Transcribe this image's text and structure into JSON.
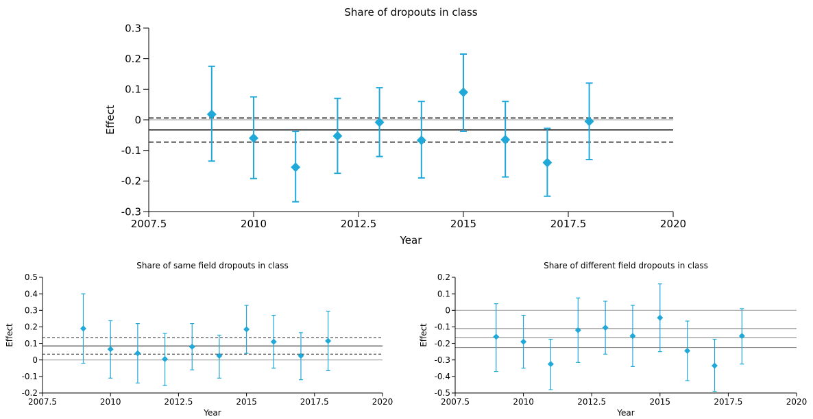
{
  "chart_data": [
    {
      "type": "scatter",
      "title": "Share of dropouts in class",
      "xlabel": "Year",
      "ylabel": "Effect",
      "xlim": [
        2007.5,
        2020
      ],
      "ylim": [
        -0.3,
        0.3
      ],
      "xticks": [
        "2007.5",
        "2010",
        "2012.5",
        "2015",
        "2017.5",
        "2020"
      ],
      "yticks": [
        "-0.3",
        "-0.2",
        "-0.1",
        "0",
        "0.1",
        "0.2",
        "0.3"
      ],
      "marker_color": "#1fa8d8",
      "points": [
        {
          "x": 2009,
          "y": 0.018,
          "lo": -0.135,
          "hi": 0.175
        },
        {
          "x": 2010,
          "y": -0.06,
          "lo": -0.192,
          "hi": 0.075
        },
        {
          "x": 2011,
          "y": -0.155,
          "lo": -0.268,
          "hi": -0.038
        },
        {
          "x": 2012,
          "y": -0.053,
          "lo": -0.175,
          "hi": 0.07
        },
        {
          "x": 2013,
          "y": -0.008,
          "lo": -0.12,
          "hi": 0.105
        },
        {
          "x": 2014,
          "y": -0.067,
          "lo": -0.19,
          "hi": 0.06
        },
        {
          "x": 2015,
          "y": 0.09,
          "lo": -0.038,
          "hi": 0.215
        },
        {
          "x": 2016,
          "y": -0.065,
          "lo": -0.187,
          "hi": 0.06
        },
        {
          "x": 2017,
          "y": -0.14,
          "lo": -0.25,
          "hi": -0.028
        },
        {
          "x": 2018,
          "y": -0.005,
          "lo": -0.13,
          "hi": 0.12
        }
      ],
      "mean": -0.033,
      "ci": [
        -0.073,
        0.006
      ],
      "zero_line": 0
    },
    {
      "type": "scatter",
      "title": "Share of same field dropouts in class",
      "xlabel": "Year",
      "ylabel": "Effect",
      "xlim": [
        2007.5,
        2020
      ],
      "ylim": [
        -0.2,
        0.5
      ],
      "xticks": [
        "2007.5",
        "2010",
        "2012.5",
        "2015",
        "2017.5",
        "2020"
      ],
      "yticks": [
        "-0.2",
        "-0.1",
        "0",
        "0.1",
        "0.2",
        "0.3",
        "0.4",
        "0.5"
      ],
      "marker_color": "#1fa8d8",
      "points": [
        {
          "x": 2009,
          "y": 0.19,
          "lo": -0.02,
          "hi": 0.4
        },
        {
          "x": 2010,
          "y": 0.065,
          "lo": -0.11,
          "hi": 0.237
        },
        {
          "x": 2011,
          "y": 0.04,
          "lo": -0.14,
          "hi": 0.22
        },
        {
          "x": 2012,
          "y": 0.005,
          "lo": -0.155,
          "hi": 0.16
        },
        {
          "x": 2013,
          "y": 0.08,
          "lo": -0.06,
          "hi": 0.22
        },
        {
          "x": 2014,
          "y": 0.025,
          "lo": -0.11,
          "hi": 0.15
        },
        {
          "x": 2015,
          "y": 0.185,
          "lo": 0.04,
          "hi": 0.33
        },
        {
          "x": 2016,
          "y": 0.11,
          "lo": -0.05,
          "hi": 0.27
        },
        {
          "x": 2017,
          "y": 0.025,
          "lo": -0.12,
          "hi": 0.165
        },
        {
          "x": 2018,
          "y": 0.115,
          "lo": -0.065,
          "hi": 0.295
        }
      ],
      "mean": 0.085,
      "ci": [
        0.035,
        0.135
      ],
      "zero_line": 0
    },
    {
      "type": "scatter",
      "title": "Share of different field dropouts in class",
      "xlabel": "Year",
      "ylabel": "Effect",
      "xlim": [
        2007.5,
        2020
      ],
      "ylim": [
        -0.5,
        0.2
      ],
      "xticks": [
        "2007.5",
        "2010",
        "2012.5",
        "2015",
        "2017.5",
        "2020"
      ],
      "yticks": [
        "-0.5",
        "-0.4",
        "-0.3",
        "-0.2",
        "-0.1",
        "0",
        "0.1",
        "0.2"
      ],
      "marker_color": "#1fa8d8",
      "points": [
        {
          "x": 2009,
          "y": -0.16,
          "lo": -0.37,
          "hi": 0.04
        },
        {
          "x": 2010,
          "y": -0.19,
          "lo": -0.35,
          "hi": -0.03
        },
        {
          "x": 2011,
          "y": -0.325,
          "lo": -0.48,
          "hi": -0.175
        },
        {
          "x": 2012,
          "y": -0.12,
          "lo": -0.315,
          "hi": 0.075
        },
        {
          "x": 2013,
          "y": -0.105,
          "lo": -0.265,
          "hi": 0.055
        },
        {
          "x": 2014,
          "y": -0.155,
          "lo": -0.34,
          "hi": 0.03
        },
        {
          "x": 2015,
          "y": -0.045,
          "lo": -0.25,
          "hi": 0.16
        },
        {
          "x": 2016,
          "y": -0.245,
          "lo": -0.425,
          "hi": -0.065
        },
        {
          "x": 2017,
          "y": -0.335,
          "lo": -0.49,
          "hi": -0.175
        },
        {
          "x": 2018,
          "y": -0.155,
          "lo": -0.325,
          "hi": 0.01
        }
      ],
      "mean": -0.165,
      "ci": [
        -0.225,
        -0.11
      ],
      "zero_line": 0
    }
  ]
}
